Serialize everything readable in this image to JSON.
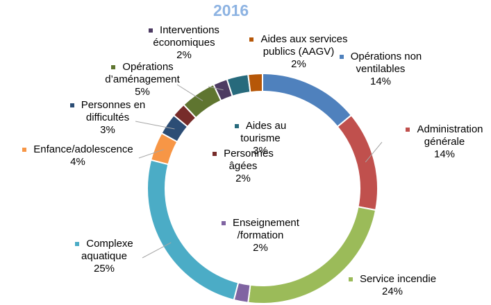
{
  "chart_data": {
    "type": "donut",
    "title": "2016",
    "categories": [
      "Opérations non ventilables",
      "Administration générale",
      "Service incendie",
      "Enseignement /formation",
      "Complexe aquatique",
      "Enfance/adolescence",
      "Personnes en difficultés",
      "Personnes âgées",
      "Opérations d’aménagement",
      "Interventions économiques",
      "Aides au tourisme",
      "Aides aux services publics (AAGV)"
    ],
    "values": [
      14,
      14,
      24,
      2,
      25,
      4,
      3,
      2,
      5,
      2,
      3,
      2
    ],
    "value_labels": [
      "14%",
      "14%",
      "24%",
      "2%",
      "25%",
      "4%",
      "3%",
      "2%",
      "5%",
      "2%",
      "3%",
      "2%"
    ],
    "colors": [
      "#4f81bd",
      "#c0504d",
      "#9bbb59",
      "#8064a2",
      "#4bacc6",
      "#f79646",
      "#2c4d75",
      "#772c2a",
      "#5f7530",
      "#4d3b62",
      "#276a7c",
      "#b65708"
    ]
  }
}
